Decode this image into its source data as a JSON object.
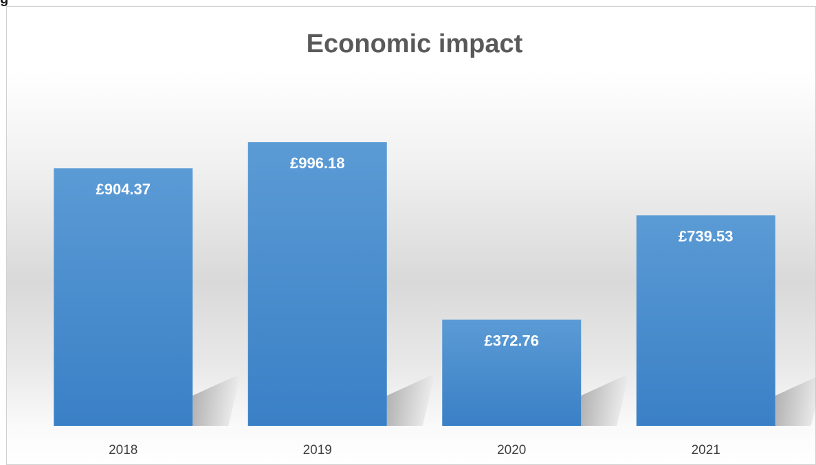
{
  "page": {
    "fragment_text": "g"
  },
  "chart_data": {
    "type": "bar",
    "title": "Economic impact",
    "xlabel": "",
    "ylabel": "",
    "categories": [
      "2018",
      "2019",
      "2020",
      "2021"
    ],
    "values": [
      904.37,
      996.18,
      372.76,
      739.53
    ],
    "data_labels": [
      "£904.37",
      "£996.18",
      "£372.76",
      "£739.53"
    ],
    "ylim": [
      0,
      1100
    ],
    "grid": false,
    "legend": "none",
    "colors": {
      "bar_top": "#5b9bd5",
      "bar_bottom": "#3a80c6",
      "data_label": "#ffffff",
      "title": "#595959",
      "tick_label": "#404040",
      "shadow": "#9a9a9a"
    }
  }
}
